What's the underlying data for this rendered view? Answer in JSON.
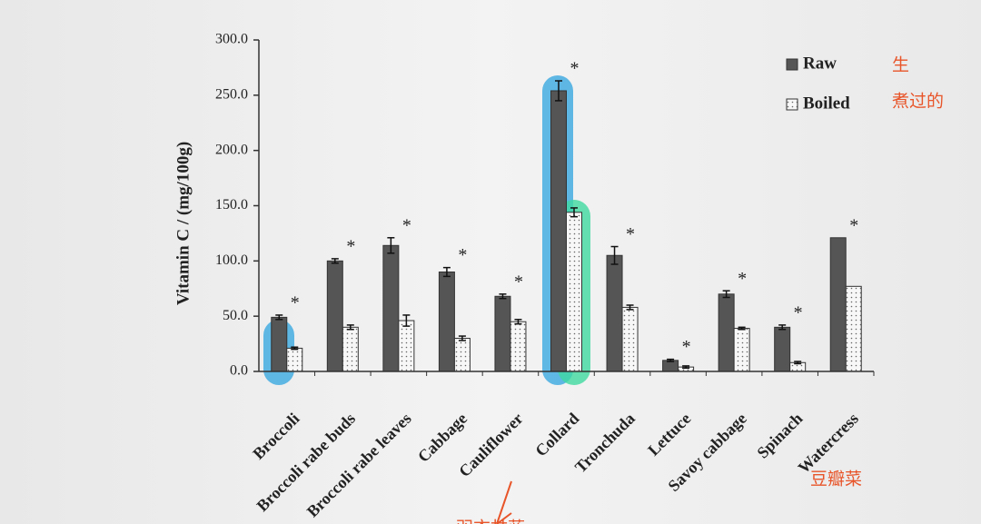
{
  "chart_data": {
    "type": "bar",
    "y_label": "Vitamin C / (mg/100g)",
    "categories": [
      "Broccoli",
      "Broccoli rabe buds",
      "Broccoli rabe leaves",
      "Cabbage",
      "Cauliflower",
      "Collard",
      "Tronchuda",
      "Lettuce",
      "Savoy cabbage",
      "Spinach",
      "Watercress"
    ],
    "series": [
      {
        "name": "Raw",
        "color": "#555555",
        "values": [
          49,
          100,
          114,
          90,
          68,
          254,
          105,
          10,
          70,
          40,
          121
        ],
        "errors": [
          2,
          2,
          7,
          4,
          2,
          9,
          8,
          1,
          3,
          2,
          null
        ]
      },
      {
        "name": "Boiled",
        "color": "#f4f4f4",
        "values": [
          21,
          40,
          46,
          30,
          45,
          144,
          58,
          4,
          39,
          8,
          77
        ],
        "errors": [
          1,
          2,
          5,
          2,
          2,
          4,
          2,
          1,
          1,
          1,
          null
        ]
      }
    ],
    "significance": [
      "*",
      "*",
      "*",
      "*",
      "*",
      "*",
      "*",
      "*",
      "*",
      "*",
      "*"
    ],
    "ylim": [
      0,
      300
    ],
    "yticks": [
      {
        "value": 0,
        "label": "0.0"
      },
      {
        "value": 50,
        "label": "50.0"
      },
      {
        "value": 100,
        "label": "100.0"
      },
      {
        "value": 150,
        "label": "150.0"
      },
      {
        "value": 200,
        "label": "200.0"
      },
      {
        "value": 250,
        "label": "250.0"
      },
      {
        "value": 300,
        "label": "300.0"
      }
    ],
    "legend": "top-right",
    "annotations": [
      "生",
      "煮过的",
      "豆瓣菜",
      "羽衣甘蓝"
    ]
  }
}
